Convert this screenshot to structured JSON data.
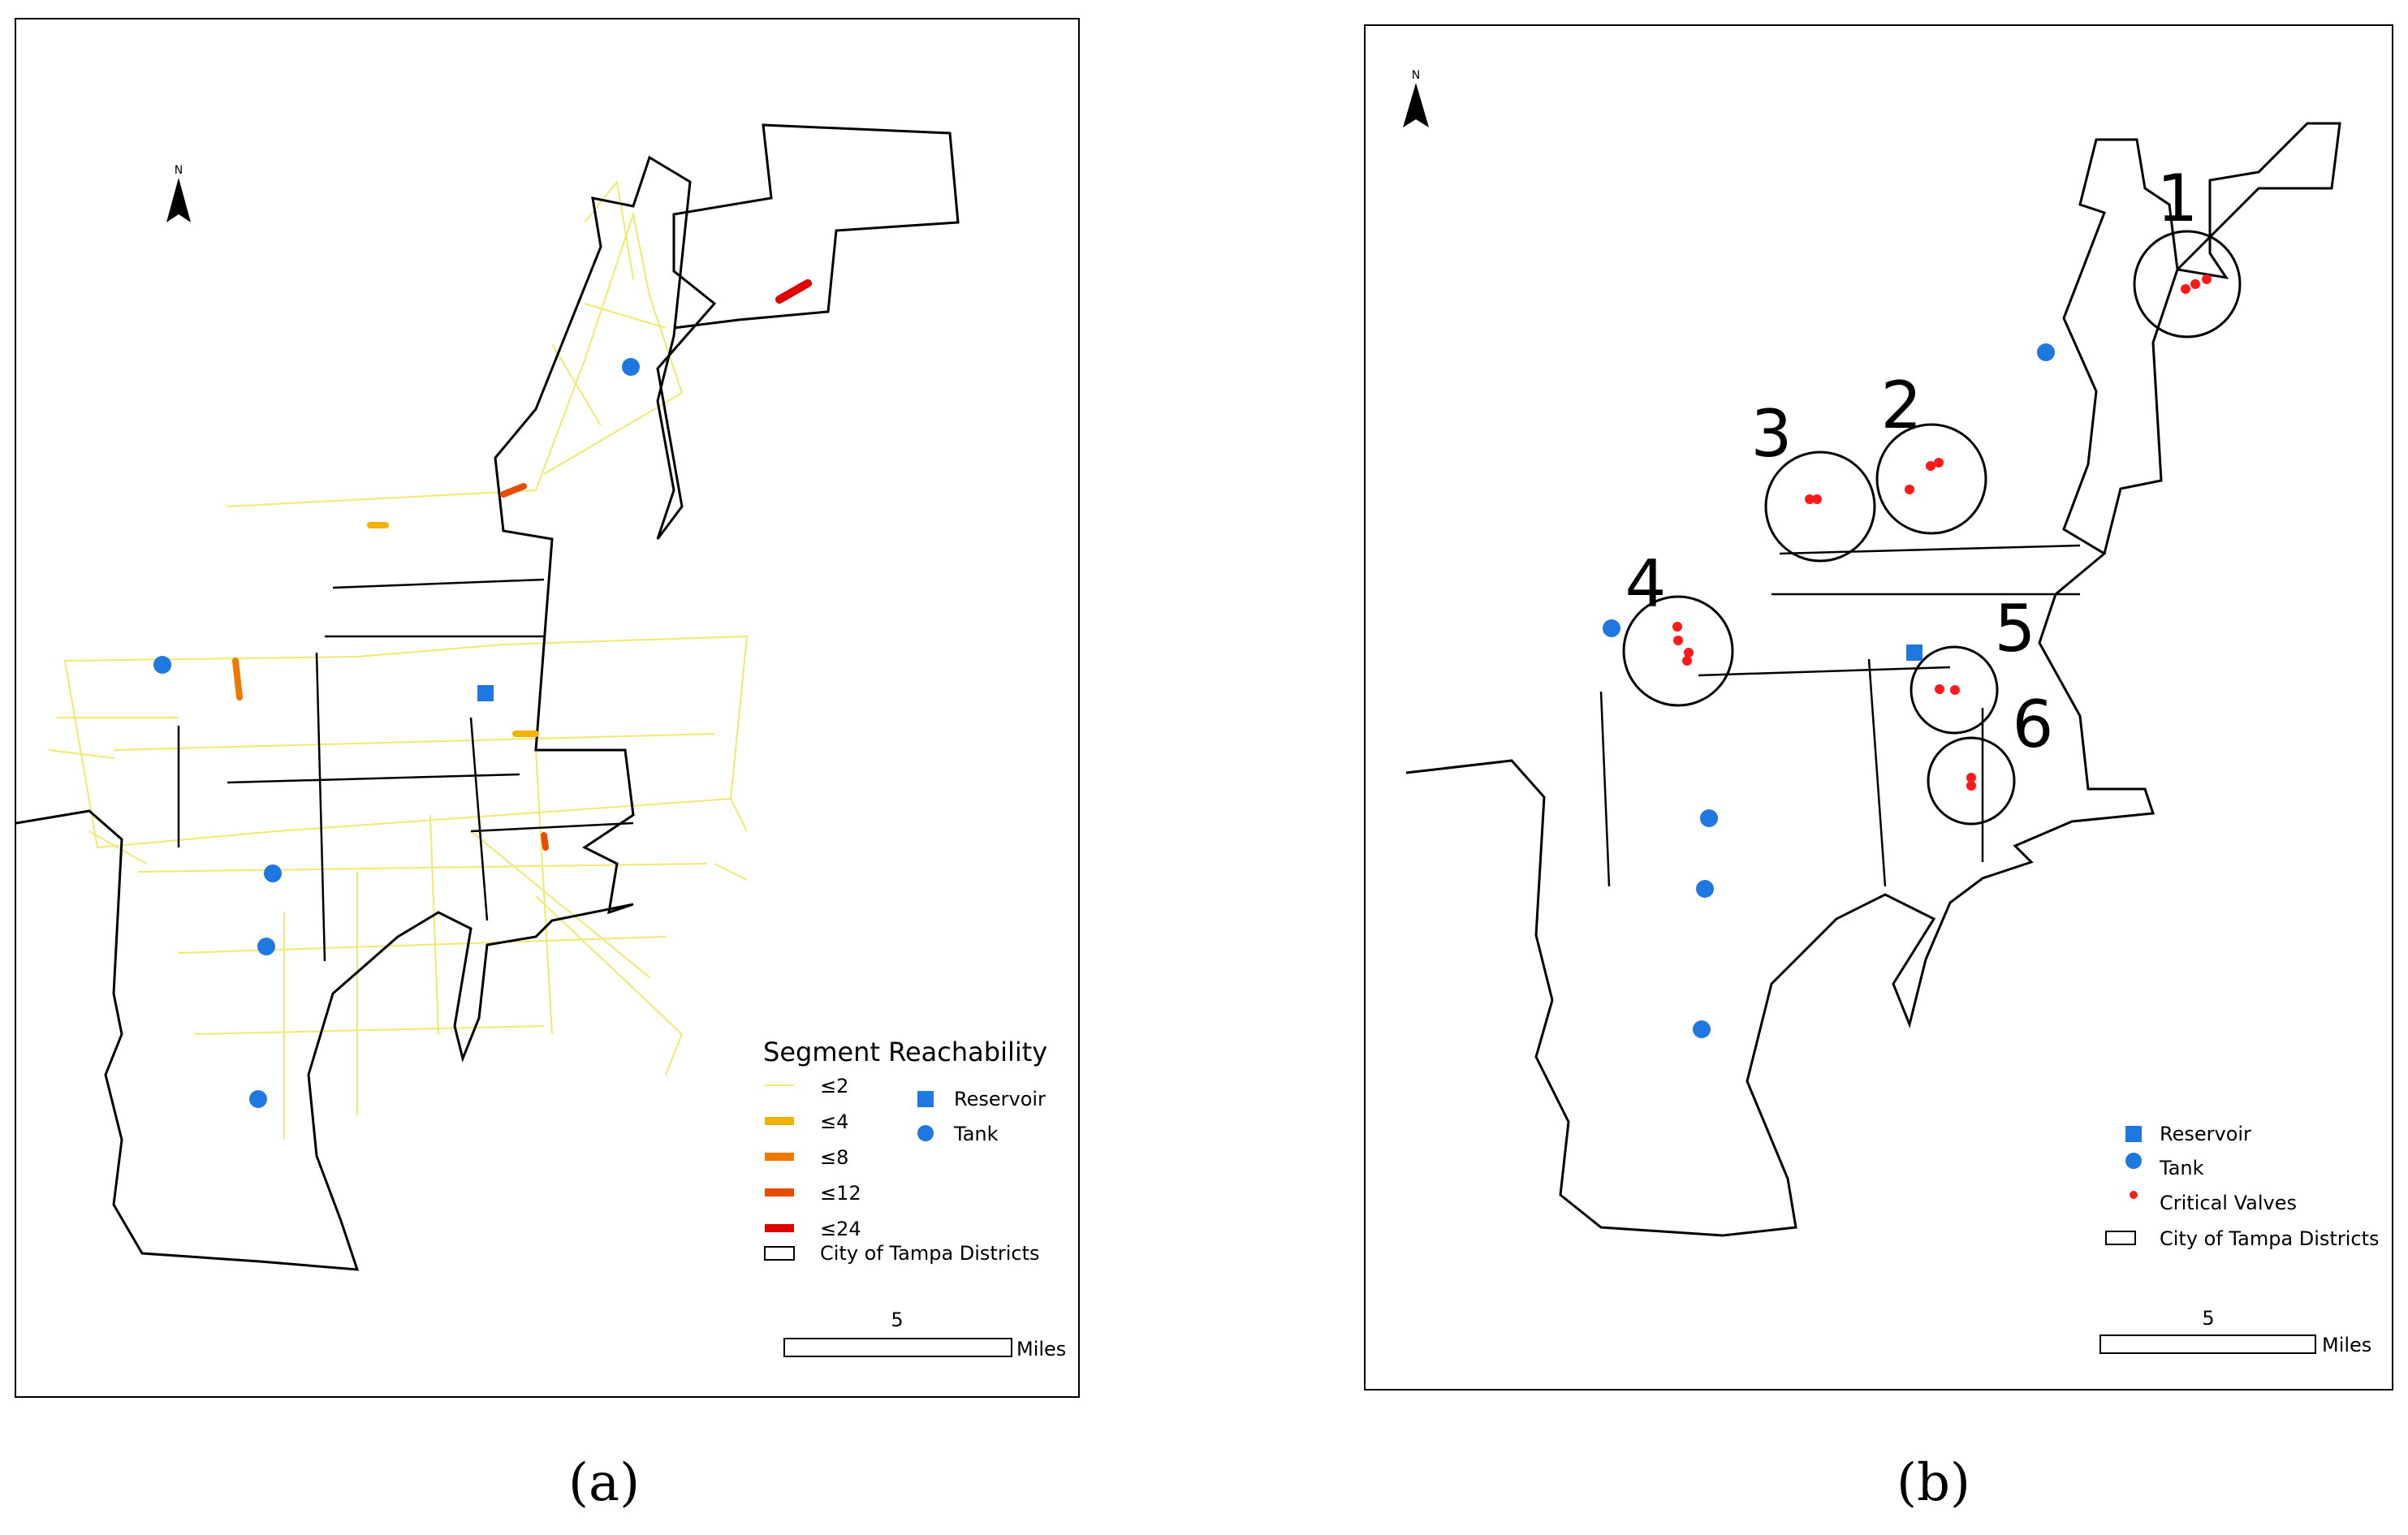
{
  "panel_a": {
    "caption": "(a)",
    "north": "N",
    "legend": {
      "title": "Segment Reachability",
      "items": [
        {
          "label": "≤2",
          "color": "#f2e870"
        },
        {
          "label": "≤4",
          "color": "#f0b400"
        },
        {
          "label": "≤8",
          "color": "#f07800"
        },
        {
          "label": "≤12",
          "color": "#e84c00"
        },
        {
          "label": "≤24",
          "color": "#e00000"
        }
      ],
      "reservoir": "Reservoir",
      "tank": "Tank",
      "districts": "City of Tampa Districts"
    },
    "scale": {
      "value": "5",
      "unit": "Miles"
    }
  },
  "panel_b": {
    "caption": "(b)",
    "north": "N",
    "legend": {
      "reservoir": "Reservoir",
      "tank": "Tank",
      "valves": "Critical Valves",
      "districts": "City of Tampa Districts"
    },
    "scale": {
      "value": "5",
      "unit": "Miles"
    },
    "clusters": [
      "1",
      "2",
      "3",
      "4",
      "5",
      "6"
    ]
  },
  "colors": {
    "tank": "#1f77e0",
    "reservoir": "#1f77e0",
    "valve": "#ff1a1a",
    "boundary": "#000000"
  }
}
